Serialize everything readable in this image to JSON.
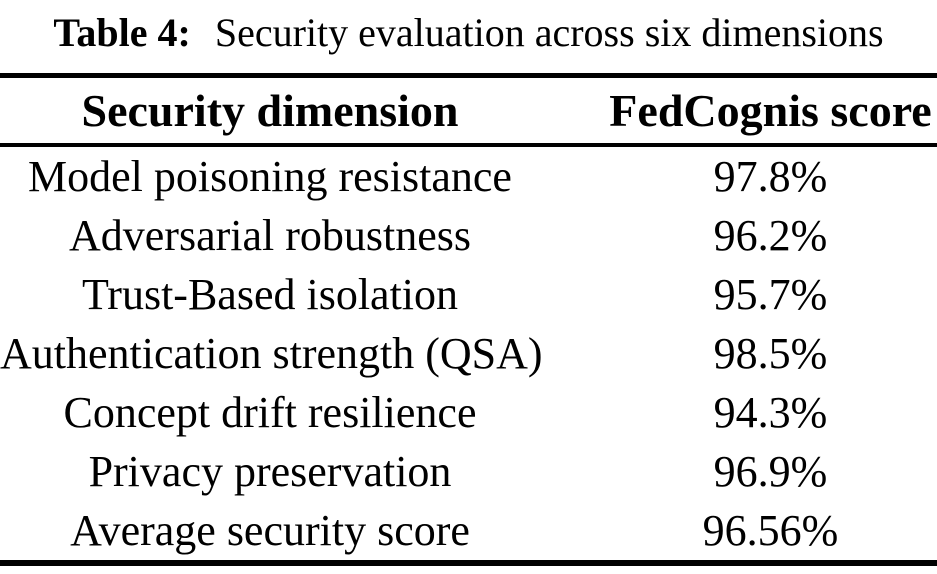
{
  "caption": {
    "label": "Table 4:",
    "text": "Security evaluation across six dimensions"
  },
  "table": {
    "headers": [
      "Security dimension",
      "FedCognis score"
    ],
    "rows": [
      {
        "dimension": "Model poisoning resistance",
        "score": "97.8%"
      },
      {
        "dimension": "Adversarial robustness",
        "score": "96.2%"
      },
      {
        "dimension": "Trust-Based isolation",
        "score": "95.7%"
      },
      {
        "dimension": "Authentication strength (QSA)",
        "score": "98.5%"
      },
      {
        "dimension": "Concept drift resilience",
        "score": "94.3%"
      },
      {
        "dimension": "Privacy preservation",
        "score": "96.9%"
      },
      {
        "dimension": "Average security score",
        "score": "96.56%"
      }
    ]
  },
  "colors": {
    "text": "#000000",
    "background": "#ffffff",
    "rule": "#000000"
  },
  "chart_data": {
    "type": "table",
    "title": "Table 4: Security evaluation across six dimensions",
    "columns": [
      "Security dimension",
      "FedCognis score"
    ],
    "rows": [
      [
        "Model poisoning resistance",
        "97.8%"
      ],
      [
        "Adversarial robustness",
        "96.2%"
      ],
      [
        "Trust-Based isolation",
        "95.7%"
      ],
      [
        "Authentication strength (QSA)",
        "98.5%"
      ],
      [
        "Concept drift resilience",
        "94.3%"
      ],
      [
        "Privacy preservation",
        "96.9%"
      ],
      [
        "Average security score",
        "96.56%"
      ]
    ]
  }
}
